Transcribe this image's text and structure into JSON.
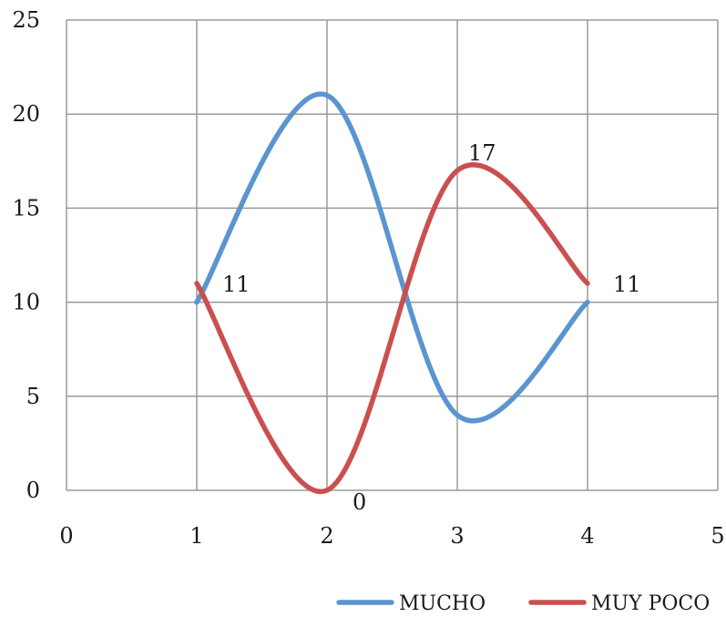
{
  "chart_data": {
    "type": "line",
    "smooth": true,
    "xlim": [
      0,
      5
    ],
    "ylim": [
      0,
      25
    ],
    "xticks": [
      "0",
      "1",
      "2",
      "3",
      "4",
      "5"
    ],
    "yticks": [
      "0",
      "5",
      "10",
      "15",
      "20",
      "25"
    ],
    "grid": true,
    "legend_position": "bottom-right",
    "series": [
      {
        "name": "MUCHO",
        "color": "#5b95cf",
        "x": [
          1,
          2,
          3,
          4
        ],
        "y": [
          10,
          21,
          4,
          10
        ]
      },
      {
        "name": "MUY POCO",
        "color": "#c9504f",
        "x": [
          1,
          2,
          3,
          4
        ],
        "y": [
          11,
          0,
          17,
          11
        ]
      }
    ],
    "data_labels": [
      {
        "series": 1,
        "index": 0,
        "text": "11"
      },
      {
        "series": 1,
        "index": 1,
        "text": "0"
      },
      {
        "series": 1,
        "index": 2,
        "text": "17"
      },
      {
        "series": 1,
        "index": 3,
        "text": "11"
      }
    ]
  }
}
